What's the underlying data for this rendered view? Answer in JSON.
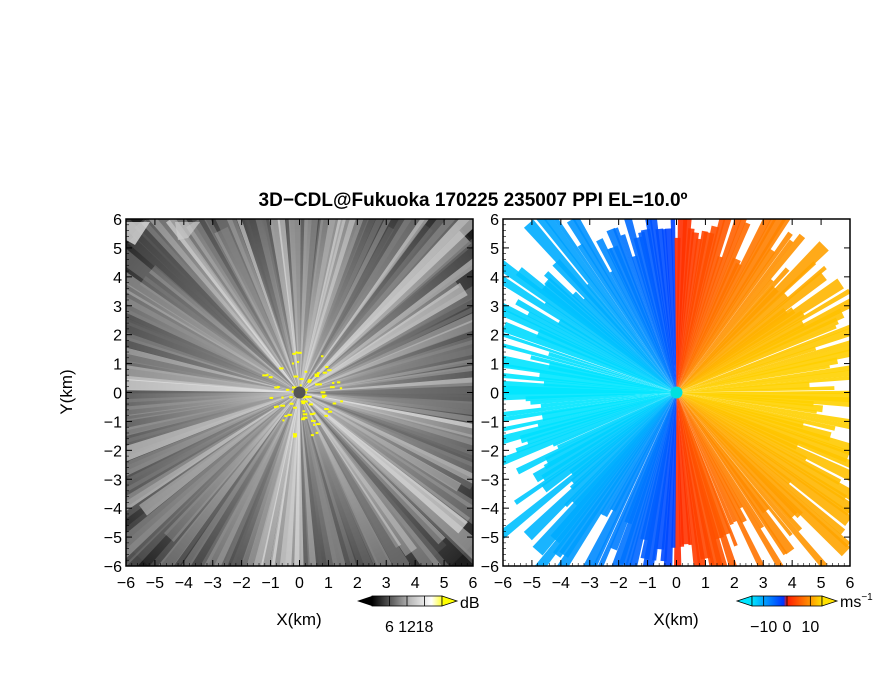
{
  "title": "3D−CDL@Fukuoka 170225 235007 PPI EL=10.0º",
  "chart_data": [
    {
      "type": "heatmap",
      "panel": "reflectivity",
      "xlabel": "X(km)",
      "ylabel": "Y(km)",
      "xlim": [
        -6,
        6
      ],
      "ylim": [
        -6,
        6
      ],
      "x_ticks": [
        "−6",
        "−5",
        "−4",
        "−3",
        "−2",
        "−1",
        "0",
        "1",
        "2",
        "3",
        "4",
        "5",
        "6"
      ],
      "y_ticks": [
        "6",
        "5",
        "4",
        "3",
        "2",
        "1",
        "0",
        "−1",
        "−2",
        "−3",
        "−4",
        "−5",
        "−6"
      ],
      "colorbar": {
        "unit": "dB",
        "ticks": [
          6,
          12,
          18
        ],
        "tick_labels": [
          "6",
          "12",
          "18"
        ],
        "range": [
          0,
          24
        ],
        "colors": [
          "#000000",
          "#ffffff",
          "#ffff00"
        ]
      },
      "radar_center": {
        "x": 0,
        "y": 0,
        "color": "#555555"
      }
    },
    {
      "type": "heatmap",
      "panel": "doppler-velocity",
      "xlabel": "X(km)",
      "xlim": [
        -6,
        6
      ],
      "ylim": [
        -6,
        6
      ],
      "x_ticks": [
        "−6",
        "−5",
        "−4",
        "−3",
        "−2",
        "−1",
        "0",
        "1",
        "2",
        "3",
        "4",
        "5",
        "6"
      ],
      "y_ticks": [
        "6",
        "5",
        "4",
        "3",
        "2",
        "1",
        "0",
        "−1",
        "−2",
        "−3",
        "−4",
        "−5",
        "−6"
      ],
      "colorbar": {
        "unit": "ms",
        "unit_sup": "−1",
        "ticks": [
          -10,
          0,
          10
        ],
        "tick_labels": [
          "−10",
          "0",
          "10"
        ],
        "range": [
          -15,
          15
        ],
        "colors": [
          "#00e5ff",
          "#0044ff",
          "#ff2200",
          "#ffcc00"
        ]
      },
      "radar_center": {
        "x": 0,
        "y": 0,
        "color": "#00e0e0"
      }
    }
  ]
}
